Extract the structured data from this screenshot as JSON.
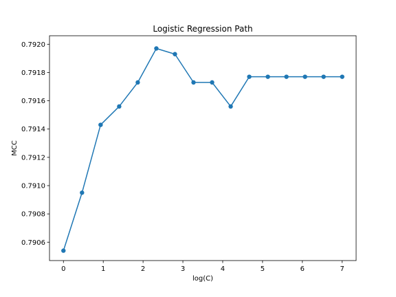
{
  "chart_data": {
    "type": "line",
    "title": "Logistic Regression Path",
    "xlabel": "log(C)",
    "ylabel": "MCC",
    "xlim": [
      -0.35,
      7.35
    ],
    "ylim": [
      0.79047,
      0.79206
    ],
    "xticks": [
      0,
      1,
      2,
      3,
      4,
      5,
      6,
      7
    ],
    "yticks": [
      0.7906,
      0.7908,
      0.791,
      0.7912,
      0.7914,
      0.7916,
      0.7918,
      0.792
    ],
    "ytick_labels": [
      "0.7906",
      "0.7908",
      "0.7910",
      "0.7912",
      "0.7914",
      "0.7916",
      "0.7918",
      "0.7920"
    ],
    "grid": false,
    "series": [
      {
        "color": "#1f77b4",
        "marker": "circle",
        "x": [
          0,
          0.4667,
          0.9333,
          1.4,
          1.8667,
          2.3333,
          2.8,
          3.2667,
          3.7333,
          4.2,
          4.6667,
          5.1333,
          5.6,
          6.0667,
          6.5333,
          7.0
        ],
        "y": [
          0.79054,
          0.79095,
          0.79143,
          0.79156,
          0.79173,
          0.79197,
          0.79193,
          0.79173,
          0.79173,
          0.79156,
          0.79177,
          0.79177,
          0.79177,
          0.79177,
          0.79177,
          0.79177
        ]
      }
    ]
  }
}
